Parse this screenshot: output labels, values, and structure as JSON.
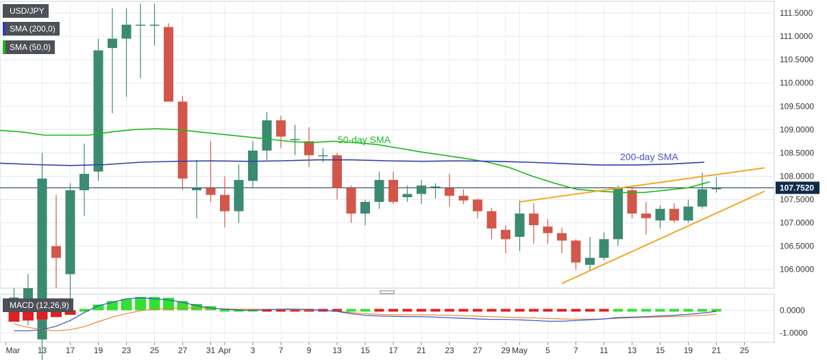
{
  "legend": {
    "symbol": "USD/JPY",
    "sma200": "SMA (200,0)",
    "sma50": "SMA (50,0)",
    "macd": "MACD (12,26,9)"
  },
  "colors": {
    "up": "#3b8a72",
    "down": "#d2574a",
    "sma200": "#2e3cb0",
    "sma50": "#19b919",
    "trendline": "#f5a623",
    "macd_line": "#2d4ec8",
    "signal_line": "#e8852a",
    "hist_pos": "#33e033",
    "hist_neg": "#e02020",
    "price_badge": "#0f2a4a"
  },
  "chart_data": [
    {
      "type": "candlestick",
      "title": "USD/JPY",
      "x_tick_labels": [
        "Mar",
        "13",
        "17",
        "19",
        "23",
        "25",
        "27",
        "31",
        "Apr",
        "3",
        "7",
        "9",
        "13",
        "15",
        "17",
        "21",
        "23",
        "27",
        "29",
        "May",
        "5",
        "7",
        "11",
        "13",
        "15",
        "19",
        "21",
        "25"
      ],
      "y_ticks": [
        111.5,
        111.0,
        110.5,
        110.0,
        109.5,
        109.0,
        108.5,
        108.0,
        107.5,
        107.0,
        106.5,
        106.0
      ],
      "y_tick_labels": [
        "111.5000",
        "111.0000",
        "110.5000",
        "110.0000",
        "109.5000",
        "109.0000",
        "108.5000",
        "108.0000",
        "107.5000",
        "107.0000",
        "106.5000",
        "106.0000"
      ],
      "ylim": [
        105.6,
        111.75
      ],
      "grid": true,
      "current_price": 107.752,
      "current_price_label": "107.7520",
      "candles": [
        {
          "date": "Mar 10",
          "o": 105.1,
          "h": 105.6,
          "l": 104.9,
          "c": 105.4
        },
        {
          "date": "Mar 11",
          "o": 105.2,
          "h": 105.9,
          "l": 104.8,
          "c": 105.6
        },
        {
          "date": "Mar 12",
          "o": 104.5,
          "h": 108.5,
          "l": 103.8,
          "c": 107.95
        },
        {
          "date": "Mar 13",
          "o": 106.5,
          "h": 107.6,
          "l": 105.6,
          "c": 106.25
        },
        {
          "date": "Mar 16",
          "o": 105.9,
          "h": 107.85,
          "l": 105.2,
          "c": 107.7
        },
        {
          "date": "Mar 17",
          "o": 107.7,
          "h": 108.7,
          "l": 107.15,
          "c": 108.05
        },
        {
          "date": "Mar 18",
          "o": 108.1,
          "h": 110.95,
          "l": 107.9,
          "c": 110.7
        },
        {
          "date": "Mar 19",
          "o": 110.75,
          "h": 111.6,
          "l": 109.35,
          "c": 110.95
        },
        {
          "date": "Mar 20",
          "o": 110.95,
          "h": 111.6,
          "l": 109.7,
          "c": 111.25
        },
        {
          "date": "Mar 23",
          "o": 111.25,
          "h": 111.7,
          "l": 110.1,
          "c": 111.25
        },
        {
          "date": "Mar 24",
          "o": 111.25,
          "h": 111.7,
          "l": 110.8,
          "c": 111.25
        },
        {
          "date": "Mar 25",
          "o": 111.2,
          "h": 111.28,
          "l": 109.65,
          "c": 109.6
        },
        {
          "date": "Mar 26",
          "o": 109.6,
          "h": 109.72,
          "l": 107.7,
          "c": 107.95
        },
        {
          "date": "Mar 27",
          "o": 107.7,
          "h": 108.35,
          "l": 107.1,
          "c": 107.75
        },
        {
          "date": "Mar 30",
          "o": 107.75,
          "h": 108.75,
          "l": 107.45,
          "c": 107.6
        },
        {
          "date": "Mar 31",
          "o": 107.6,
          "h": 108.0,
          "l": 106.9,
          "c": 107.25
        },
        {
          "date": "Apr 1",
          "o": 107.25,
          "h": 108.25,
          "l": 107.0,
          "c": 107.92
        },
        {
          "date": "Apr 2",
          "o": 107.9,
          "h": 108.75,
          "l": 107.75,
          "c": 108.55
        },
        {
          "date": "Apr 3",
          "o": 108.55,
          "h": 109.38,
          "l": 108.35,
          "c": 109.2
        },
        {
          "date": "Apr 6",
          "o": 109.2,
          "h": 109.3,
          "l": 108.6,
          "c": 108.85
        },
        {
          "date": "Apr 7",
          "o": 108.8,
          "h": 109.1,
          "l": 108.45,
          "c": 108.8
        },
        {
          "date": "Apr 8",
          "o": 108.75,
          "h": 109.05,
          "l": 108.2,
          "c": 108.45
        },
        {
          "date": "Apr 9",
          "o": 108.45,
          "h": 108.6,
          "l": 108.3,
          "c": 108.45
        },
        {
          "date": "Apr 10",
          "o": 108.45,
          "h": 108.5,
          "l": 107.5,
          "c": 107.75
        },
        {
          "date": "Apr 13",
          "o": 107.75,
          "h": 107.8,
          "l": 107.0,
          "c": 107.2
        },
        {
          "date": "Apr 14",
          "o": 107.2,
          "h": 107.5,
          "l": 106.95,
          "c": 107.45
        },
        {
          "date": "Apr 15",
          "o": 107.45,
          "h": 108.1,
          "l": 107.3,
          "c": 107.92
        },
        {
          "date": "Apr 16",
          "o": 107.92,
          "h": 108.1,
          "l": 107.4,
          "c": 107.45
        },
        {
          "date": "Apr 17",
          "o": 107.55,
          "h": 107.8,
          "l": 107.45,
          "c": 107.62
        },
        {
          "date": "Apr 20",
          "o": 107.62,
          "h": 107.92,
          "l": 107.4,
          "c": 107.8
        },
        {
          "date": "Apr 21",
          "o": 107.78,
          "h": 107.85,
          "l": 107.52,
          "c": 107.78
        },
        {
          "date": "Apr 22",
          "o": 107.75,
          "h": 108.05,
          "l": 107.35,
          "c": 107.58
        },
        {
          "date": "Apr 23",
          "o": 107.58,
          "h": 107.72,
          "l": 107.4,
          "c": 107.48
        },
        {
          "date": "Apr 24",
          "o": 107.5,
          "h": 107.52,
          "l": 107.1,
          "c": 107.25
        },
        {
          "date": "Apr 27",
          "o": 107.25,
          "h": 107.32,
          "l": 106.65,
          "c": 106.88
        },
        {
          "date": "Apr 28",
          "o": 106.85,
          "h": 106.95,
          "l": 106.35,
          "c": 106.65
        },
        {
          "date": "Apr 29",
          "o": 106.7,
          "h": 107.48,
          "l": 106.4,
          "c": 107.2
        },
        {
          "date": "Apr 30",
          "o": 107.2,
          "h": 107.42,
          "l": 106.55,
          "c": 106.95
        },
        {
          "date": "May 1",
          "o": 106.92,
          "h": 107.08,
          "l": 106.55,
          "c": 106.78
        },
        {
          "date": "May 4",
          "o": 106.78,
          "h": 106.9,
          "l": 106.35,
          "c": 106.62
        },
        {
          "date": "May 5",
          "o": 106.62,
          "h": 106.65,
          "l": 106.0,
          "c": 106.15
        },
        {
          "date": "May 6",
          "o": 106.1,
          "h": 106.7,
          "l": 105.98,
          "c": 106.25
        },
        {
          "date": "May 7",
          "o": 106.25,
          "h": 106.8,
          "l": 106.2,
          "c": 106.65
        },
        {
          "date": "May 8",
          "o": 106.65,
          "h": 107.8,
          "l": 106.5,
          "c": 107.75
        },
        {
          "date": "May 11",
          "o": 107.7,
          "h": 107.75,
          "l": 107.1,
          "c": 107.2
        },
        {
          "date": "May 12",
          "o": 107.2,
          "h": 107.45,
          "l": 106.75,
          "c": 107.1
        },
        {
          "date": "May 13",
          "o": 107.05,
          "h": 107.38,
          "l": 106.88,
          "c": 107.3
        },
        {
          "date": "May 14",
          "o": 107.3,
          "h": 107.42,
          "l": 107.0,
          "c": 107.05
        },
        {
          "date": "May 15",
          "o": 107.05,
          "h": 107.5,
          "l": 107.0,
          "c": 107.35
        },
        {
          "date": "May 18",
          "o": 107.35,
          "h": 108.08,
          "l": 107.3,
          "c": 107.72
        },
        {
          "date": "May 19",
          "o": 107.72,
          "h": 107.98,
          "l": 107.65,
          "c": 107.75
        }
      ],
      "sma50": [
        108.98,
        108.95,
        108.88,
        108.88,
        108.88,
        108.95,
        109.0,
        109.02,
        109.0,
        108.95,
        108.9,
        108.85,
        108.8,
        108.75,
        108.72,
        108.75,
        108.72,
        108.68,
        108.6,
        108.52,
        108.45,
        108.38,
        108.3,
        108.18,
        108.0,
        107.85,
        107.72,
        107.68,
        107.65,
        107.65,
        107.7,
        107.75,
        107.88
      ],
      "sma200": [
        108.28,
        108.25,
        108.23,
        108.25,
        108.3,
        108.32,
        108.33,
        108.32,
        108.33,
        108.35,
        108.35,
        108.33,
        108.32,
        108.33,
        108.32,
        108.3,
        108.27,
        108.24,
        108.24,
        108.26,
        108.3
      ],
      "annotations": [
        {
          "text": "50-day SMA"
        },
        {
          "text": "200-day SMA"
        }
      ],
      "trendlines": [
        {
          "from": {
            "date": "Apr 29",
            "y": 107.45
          },
          "to": {
            "date": "May 20",
            "y": 108.18
          }
        },
        {
          "from": {
            "date": "May 4",
            "y": 105.7
          },
          "to": {
            "date": "May 20",
            "y": 107.68
          }
        }
      ]
    },
    {
      "type": "bar",
      "title": "MACD (12,26,9)",
      "y_ticks": [
        0.0,
        -1.0
      ],
      "y_tick_labels": [
        "0.0000",
        "-1.0000"
      ],
      "ylim": [
        -1.4,
        0.7
      ],
      "histogram": [
        -0.5,
        -0.45,
        -0.4,
        -0.3,
        -0.2,
        0.05,
        0.25,
        0.4,
        0.5,
        0.58,
        0.58,
        0.55,
        0.4,
        0.28,
        0.18,
        0.12,
        0.08,
        0.04,
        -0.05,
        -0.08,
        -0.1,
        -0.08,
        -0.04,
        -0.02,
        0.0,
        0.0,
        -0.04,
        -0.06,
        -0.08,
        -0.1,
        -0.1,
        -0.1,
        -0.1,
        -0.1,
        -0.1,
        -0.1,
        -0.1,
        -0.09,
        -0.08,
        -0.07,
        -0.06,
        -0.05,
        -0.04,
        0.03,
        0.05,
        0.06,
        0.07,
        0.08,
        0.09,
        0.1,
        0.11
      ],
      "macd_line": [
        -0.9,
        -0.9,
        -0.85,
        -0.7,
        -0.45,
        -0.1,
        0.2,
        0.35,
        0.5,
        0.55,
        0.5,
        0.45,
        0.35,
        0.2,
        0.1,
        0.05,
        0.0,
        0.0,
        0.02,
        0.05,
        0.05,
        0.03,
        0.0,
        -0.05,
        -0.15,
        -0.22,
        -0.25,
        -0.27,
        -0.28,
        -0.28,
        -0.3,
        -0.33,
        -0.35,
        -0.38,
        -0.4,
        -0.4,
        -0.42,
        -0.45,
        -0.48,
        -0.48,
        -0.45,
        -0.42,
        -0.38,
        -0.32,
        -0.3,
        -0.28,
        -0.25,
        -0.22,
        -0.18,
        -0.12,
        -0.05
      ],
      "signal_line": [
        -0.6,
        -0.75,
        -0.85,
        -0.9,
        -0.85,
        -0.72,
        -0.5,
        -0.3,
        -0.15,
        -0.02,
        0.05,
        0.08,
        0.1,
        0.1,
        0.08,
        0.06,
        0.05,
        0.04,
        0.04,
        0.03,
        0.02,
        0.01,
        0.0,
        -0.04,
        -0.1,
        -0.15,
        -0.18,
        -0.2,
        -0.2,
        -0.2,
        -0.21,
        -0.22,
        -0.24,
        -0.26,
        -0.28,
        -0.3,
        -0.32,
        -0.34,
        -0.36,
        -0.38,
        -0.39,
        -0.39,
        -0.38,
        -0.35,
        -0.33,
        -0.31,
        -0.29,
        -0.27,
        -0.25,
        -0.22,
        -0.18
      ]
    }
  ]
}
